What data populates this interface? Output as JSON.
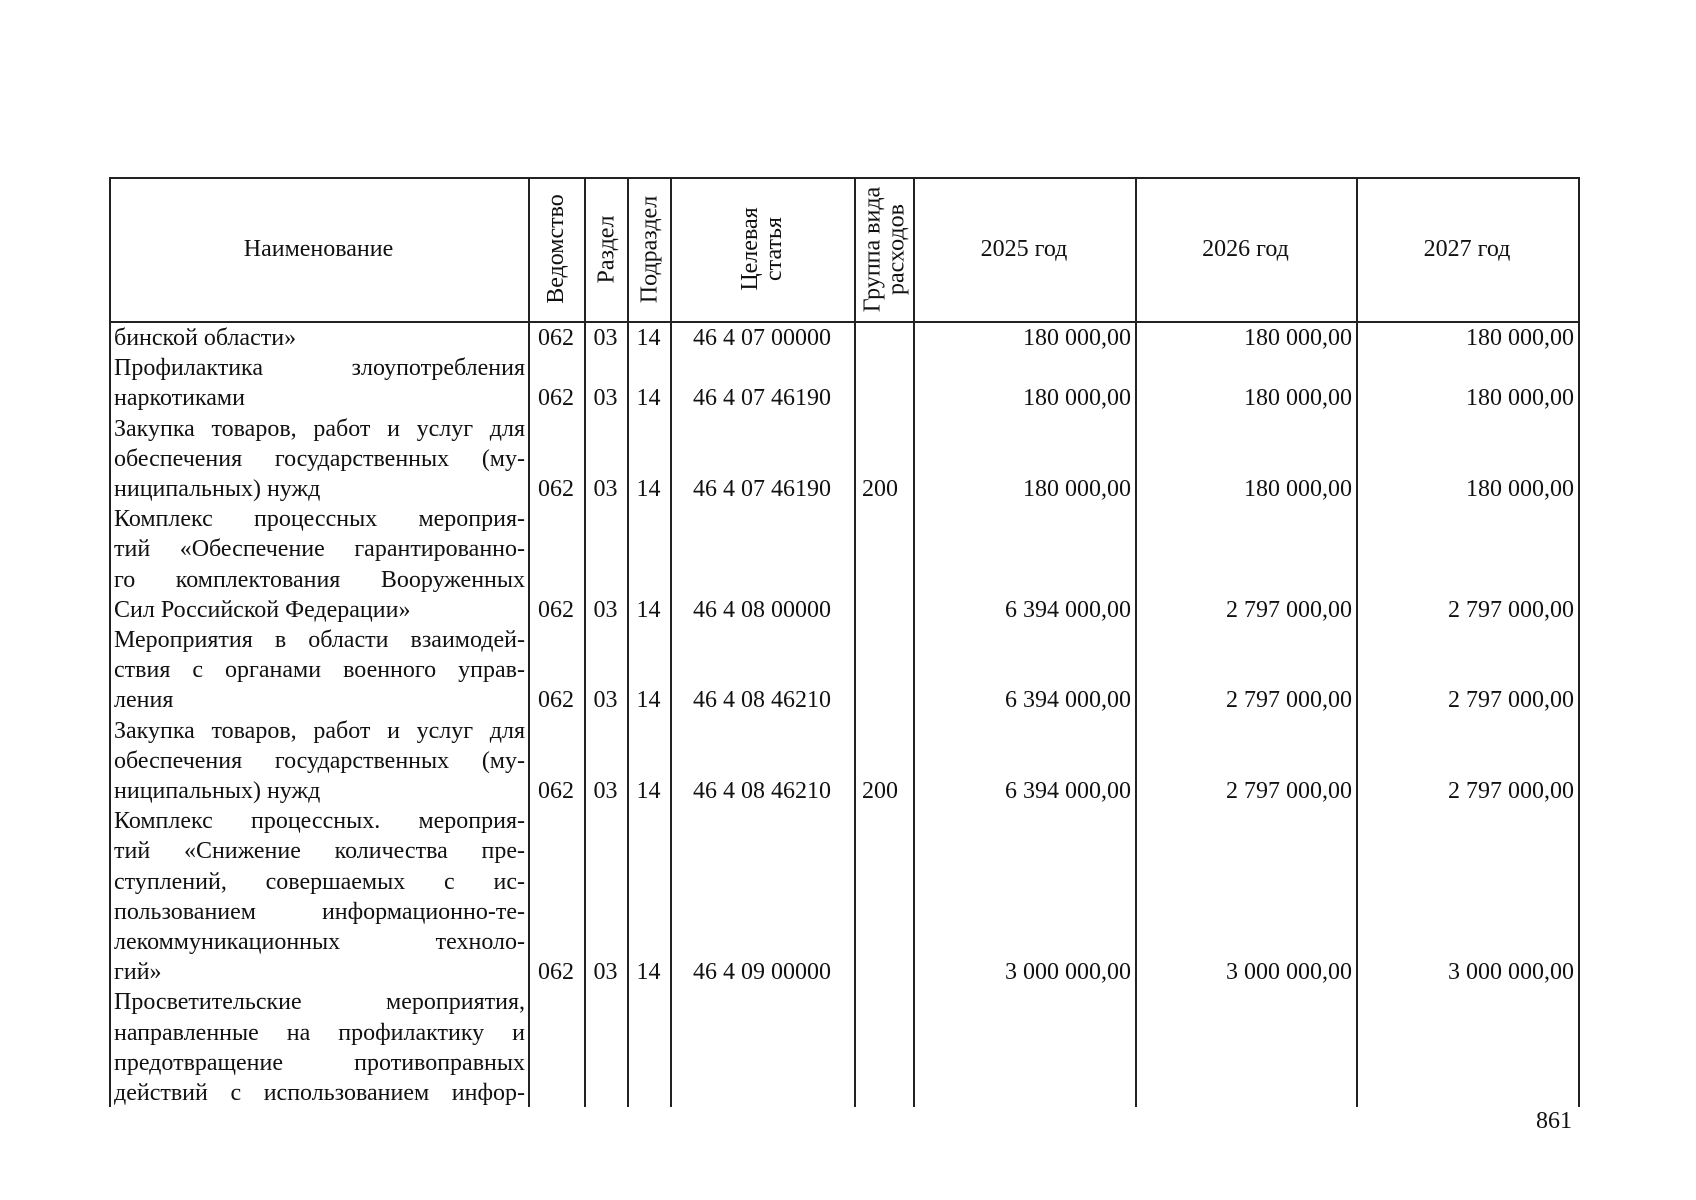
{
  "header": {
    "columns": [
      "Наименование",
      "Ведомство",
      "Раздел",
      "Подраздел",
      "Целевая статья",
      "Группа вида расходов",
      "2025 год",
      "2026 год",
      "2027 год"
    ]
  },
  "table": {
    "rows": [
      {
        "name_lines": [
          "бинской области»"
        ],
        "cells": {
          "department": "062",
          "section": "03",
          "subsection": "14",
          "target_item": "46 4 07 00000",
          "y2025": "180 000,00",
          "y2026": "180 000,00",
          "y2027": "180 000,00"
        }
      },
      {
        "name_lines": [
          "Профилактика злоупотребления",
          "наркотиками"
        ],
        "cells": {
          "department": "062",
          "section": "03",
          "subsection": "14",
          "target_item": "46 4 07 46190",
          "y2025": "180 000,00",
          "y2026": "180 000,00",
          "y2027": "180 000,00"
        }
      },
      {
        "name_lines": [
          "Закупка товаров, работ и услуг для",
          "обеспечения государственных (му-",
          "ниципальных) нужд"
        ],
        "cells": {
          "department": "062",
          "section": "03",
          "subsection": "14",
          "target_item": "46 4 07 46190",
          "expense_group": "200",
          "y2025": "180 000,00",
          "y2026": "180 000,00",
          "y2027": "180 000,00"
        }
      },
      {
        "name_lines": [
          "Комплекс процессных мероприя-",
          "тий «Обеспечение гарантированно-",
          "го комплектования Вооруженных",
          "Сил Российской Федерации»"
        ],
        "cells": {
          "department": "062",
          "section": "03",
          "subsection": "14",
          "target_item": "46 4 08 00000",
          "y2025": "6 394 000,00",
          "y2026": "2 797 000,00",
          "y2027": "2 797 000,00"
        }
      },
      {
        "name_lines": [
          "Мероприятия в области взаимодей-",
          "ствия с органами военного управ-",
          "ления"
        ],
        "cells": {
          "department": "062",
          "section": "03",
          "subsection": "14",
          "target_item": "46 4 08 46210",
          "y2025": "6 394 000,00",
          "y2026": "2 797 000,00",
          "y2027": "2 797 000,00"
        }
      },
      {
        "name_lines": [
          "Закупка товаров, работ и услуг для",
          "обеспечения государственных (му-",
          "ниципальных) нужд"
        ],
        "cells": {
          "department": "062",
          "section": "03",
          "subsection": "14",
          "target_item": "46 4 08 46210",
          "expense_group": "200",
          "y2025": "6 394 000,00",
          "y2026": "2 797 000,00",
          "y2027": "2 797 000,00"
        }
      },
      {
        "name_lines": [
          "Комплекс процессных. мероприя-",
          "тий «Снижение количества пре-",
          "ступлений, совершаемых с ис-",
          "пользованием информационно-те-",
          "лекоммуникационных техноло-",
          "гий»"
        ],
        "cells": {
          "department": "062",
          "section": "03",
          "subsection": "14",
          "target_item": "46 4 09 00000",
          "y2025": "3 000 000,00",
          "y2026": "3 000 000,00",
          "y2027": "3 000 000,00"
        }
      },
      {
        "name_lines": [
          "Просветительские мероприятия,",
          "направленные на профилактику и",
          "предотвращение противоправных",
          "действий с использованием инфор-"
        ],
        "cells": {}
      }
    ]
  },
  "page_number": "861"
}
